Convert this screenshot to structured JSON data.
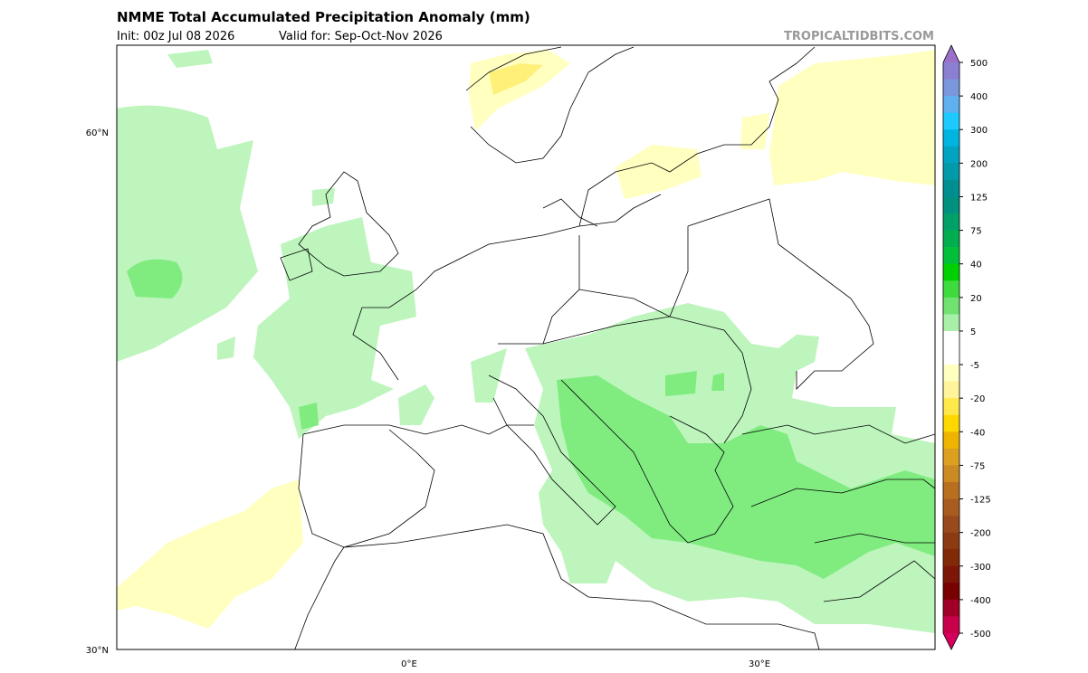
{
  "header": {
    "title": "NMME Total Accumulated Precipitation Anomaly (mm)",
    "init": "Init: 00z Jul 08 2026",
    "valid": "Valid for: Sep-Oct-Nov 2026",
    "watermark": "TROPICALTIDBITS.COM"
  },
  "map": {
    "lat_labels": [
      "60°N",
      "30°N"
    ],
    "lon_labels": [
      "0°E",
      "30°E"
    ]
  },
  "colorbar": {
    "ticks": [
      500,
      400,
      300,
      200,
      125,
      75,
      40,
      20,
      5,
      -5,
      -20,
      -40,
      -75,
      -125,
      -200,
      -300,
      -400,
      -500
    ],
    "colors": [
      "#8a7fd0",
      "#7a96dc",
      "#5fb0ee",
      "#1ccaff",
      "#00b4e0",
      "#00a4c0",
      "#009aa8",
      "#008e90",
      "#009080",
      "#00a068",
      "#00ae50",
      "#00c03a",
      "#00d000",
      "#3edb3e",
      "#6fe26f",
      "#a8f0a8",
      "#ffffff",
      "#ffffff",
      "#ffffc0",
      "#fff49a",
      "#ffe84a",
      "#ffd700",
      "#eeb400",
      "#dca020",
      "#cc8a22",
      "#b87020",
      "#a85c20",
      "#984a1c",
      "#8c3a12",
      "#822a08",
      "#7e1608",
      "#780000",
      "#a00028",
      "#c8004c"
    ],
    "extend_colors": [
      "#9a70c8",
      "#d4005c"
    ]
  }
}
